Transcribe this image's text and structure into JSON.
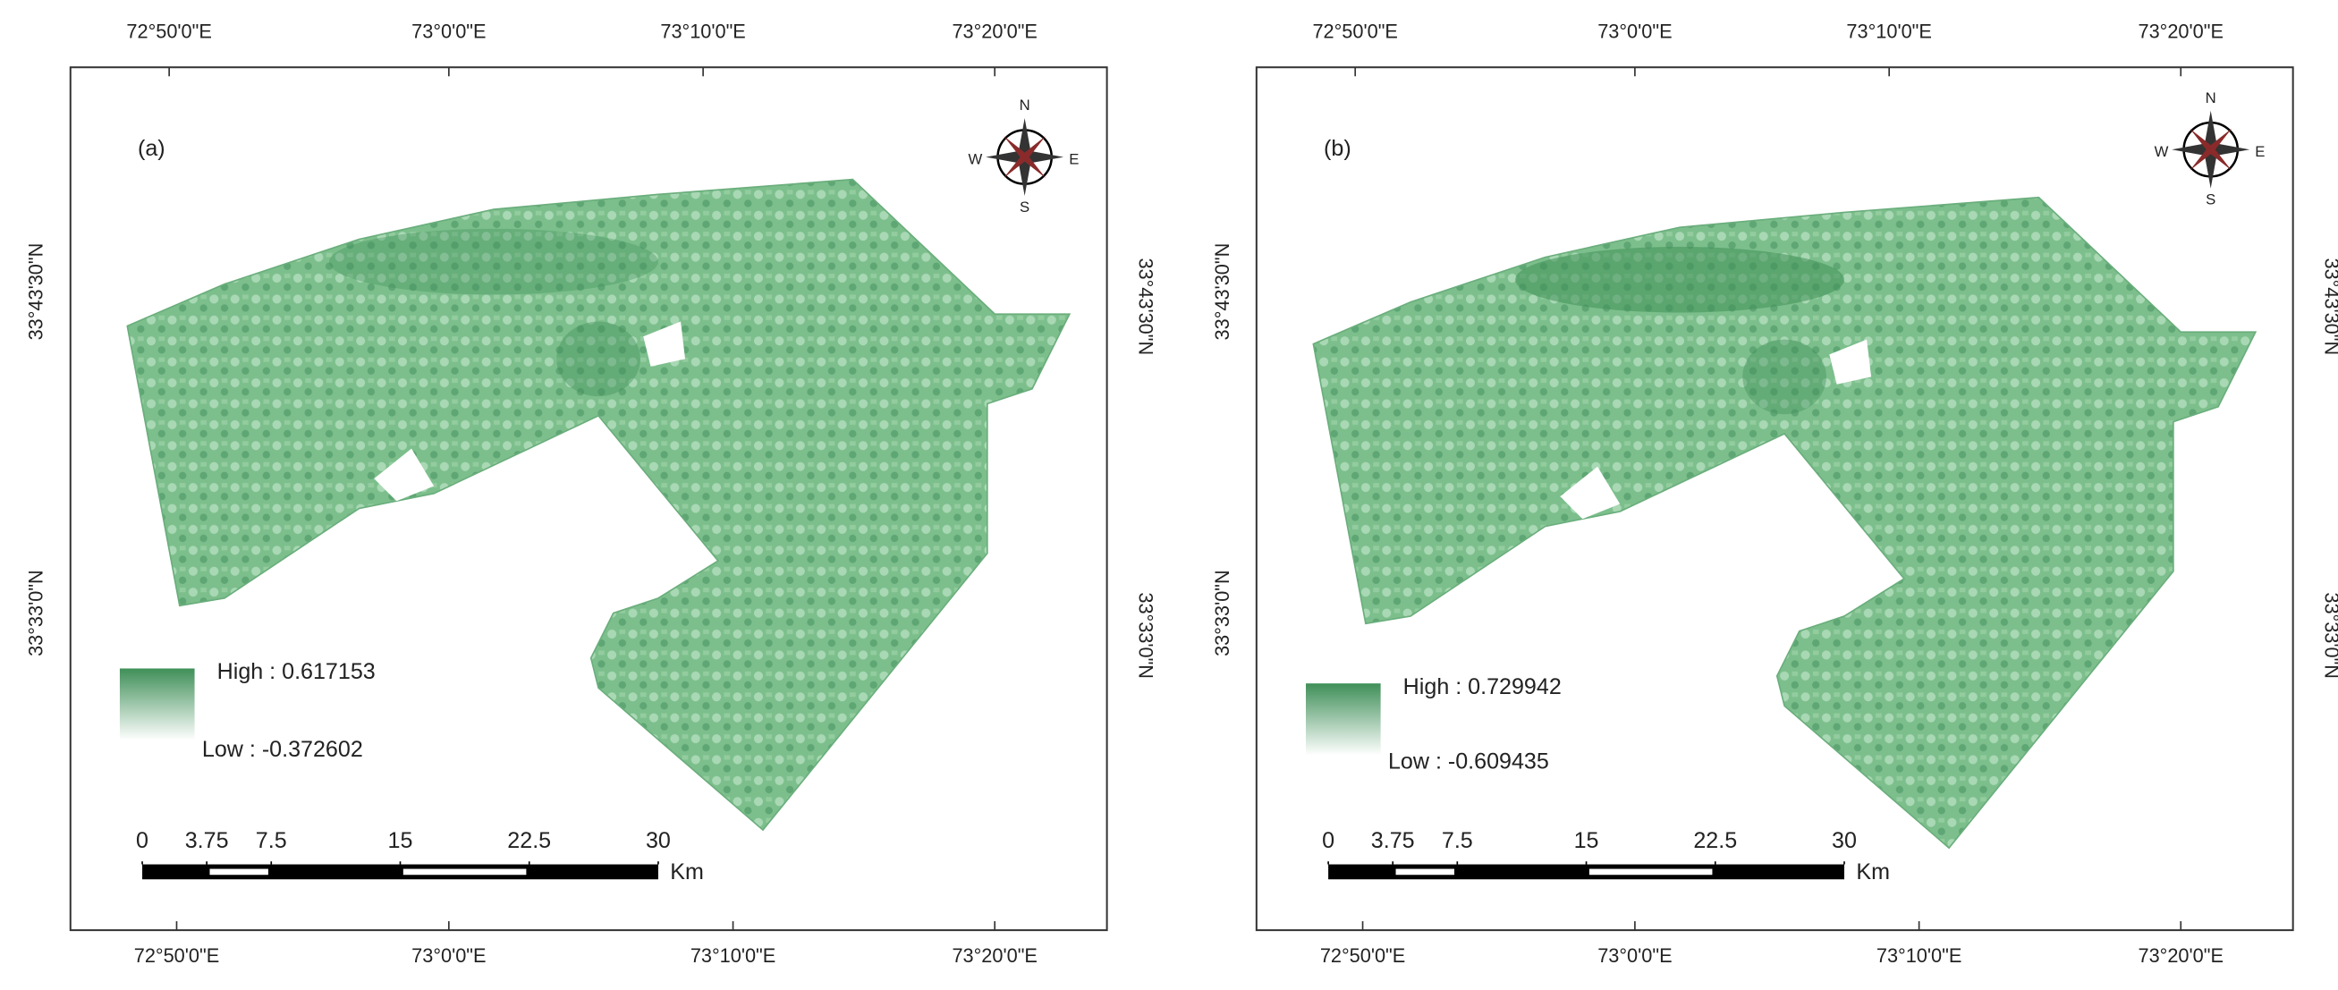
{
  "panels": [
    {
      "label": "(a)",
      "top_labels": [
        "72°50'0\"E",
        "73°0'0\"E",
        "73°10'0\"E",
        "73°20'0\"E"
      ],
      "bottom_labels": [
        "72°50'0\"E",
        "73°0'0\"E",
        "73°10'0\"E",
        "73°20'0\"E"
      ],
      "left_labels": [
        "33°43'30\"N",
        "33°33'0\"N"
      ],
      "right_labels": [
        "33°43'30\"N",
        "33°33'0\"N"
      ],
      "legend": {
        "high": "High : 0.617153",
        "low": "Low : -0.372602"
      },
      "scale_bar": {
        "ticks": [
          0,
          3.75,
          7.5,
          15,
          22.5,
          30
        ],
        "unit": "Km"
      },
      "compass": {
        "n": "N",
        "s": "S",
        "e": "E",
        "w": "W"
      }
    },
    {
      "label": "(b)",
      "top_labels": [
        "72°50'0\"E",
        "73°0'0\"E",
        "73°10'0\"E",
        "73°20'0\"E"
      ],
      "bottom_labels": [
        "72°50'0\"E",
        "73°0'0\"E",
        "73°10'0\"E",
        "73°20'0\"E"
      ],
      "left_labels": [
        "33°43'30\"N",
        "33°33'0\"N"
      ],
      "right_labels": [
        "33°43'30\"N",
        "33°33'0\"N"
      ],
      "legend": {
        "high": "High : 0.729942",
        "low": "Low : -0.609435"
      },
      "scale_bar": {
        "ticks": [
          0,
          3.75,
          7.5,
          15,
          22.5,
          30
        ],
        "unit": "Km"
      },
      "compass": {
        "n": "N",
        "s": "S",
        "e": "E",
        "w": "W"
      }
    }
  ]
}
